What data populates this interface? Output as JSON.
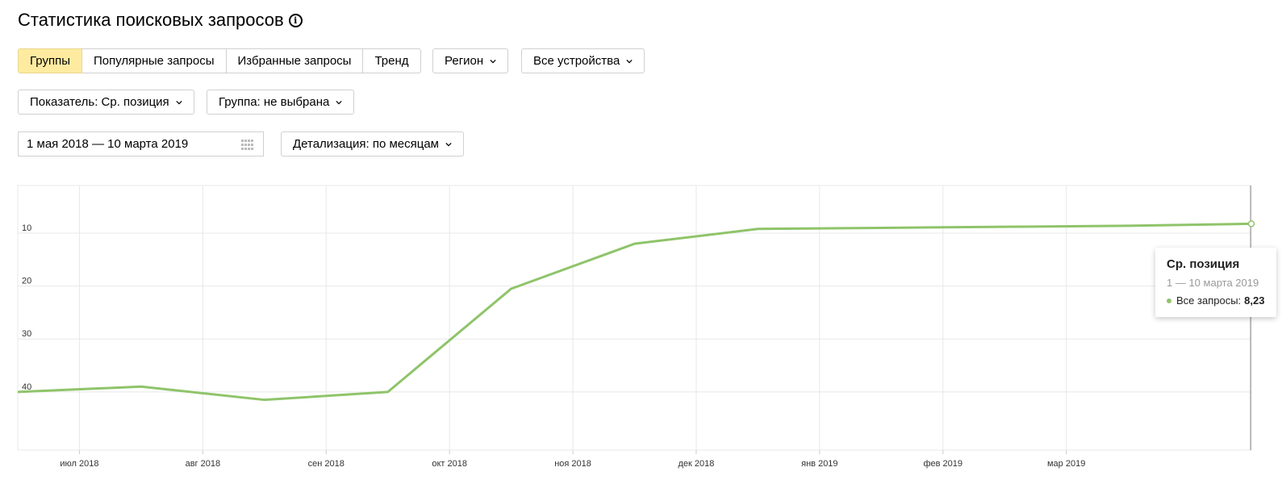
{
  "page": {
    "title": "Статистика поисковых запросов"
  },
  "tabs": [
    {
      "label": "Группы",
      "active": true
    },
    {
      "label": "Популярные запросы",
      "active": false
    },
    {
      "label": "Избранные запросы",
      "active": false
    },
    {
      "label": "Тренд",
      "active": false
    }
  ],
  "filters": {
    "region": "Регион",
    "devices": "Все устройства",
    "metric": "Показатель: Ср. позиция",
    "group": "Группа: не выбрана",
    "date_range": "1 мая 2018 — 10 марта 2019",
    "detail": "Детализация: по месяцам"
  },
  "colors": {
    "line": "#8fc46a",
    "active_tab": "#ffeba0",
    "grid": "#e8e8e8"
  },
  "tooltip": {
    "title": "Ср. позиция",
    "date": "1 — 10 марта 2019",
    "series": "Все запросы:",
    "value": "8,23"
  },
  "chart_data": {
    "type": "line",
    "title": "",
    "xlabel": "",
    "ylabel": "",
    "y_inverted": true,
    "ylim": [
      1,
      51
    ],
    "y_ticks": [
      10,
      20,
      30,
      40
    ],
    "y_tick_labels": [
      "10",
      "20",
      "30",
      "40"
    ],
    "x_range": [
      1,
      21
    ],
    "x_tick_positions": [
      2,
      4,
      6,
      8,
      10,
      12,
      14,
      16,
      18
    ],
    "x_tick_labels": [
      "июл 2018",
      "авг 2018",
      "сен 2018",
      "окт 2018",
      "ноя 2018",
      "дек 2018",
      "янв 2019",
      "фев 2019",
      "мар 2019"
    ],
    "grid": true,
    "series": [
      {
        "name": "Все запросы",
        "x": [
          1,
          3,
          5,
          7,
          9,
          11,
          13,
          15,
          17,
          19,
          21
        ],
        "y": [
          40.0,
          39.0,
          41.5,
          40.0,
          20.5,
          12.0,
          9.2,
          9.0,
          8.8,
          8.6,
          8.23
        ]
      }
    ]
  }
}
